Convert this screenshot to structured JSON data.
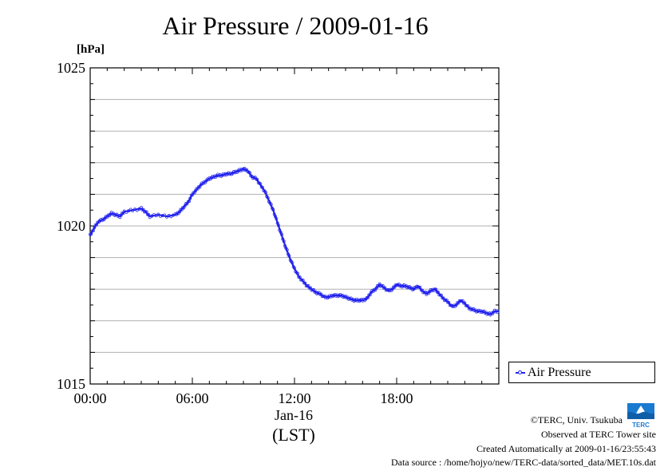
{
  "chart_data": {
    "type": "line",
    "title": "Air Pressure / 2009-01-16",
    "ylabel": "[hPa]",
    "xlabel": "Jan-16",
    "xlabel2": "(LST)",
    "ylim": [
      1015,
      1025
    ],
    "xlim": [
      0,
      24
    ],
    "y_ticks": [
      "1015",
      "1020",
      "1025"
    ],
    "x_ticks": [
      "00:00",
      "06:00",
      "12:00",
      "18:00"
    ],
    "grid": true,
    "legend_position": "bottom-right",
    "series": [
      {
        "name": "Air Pressure",
        "color": "#2222ee",
        "x": [
          0,
          0.25,
          0.5,
          0.75,
          1.0,
          1.25,
          1.5,
          1.75,
          2.0,
          2.5,
          3.0,
          3.25,
          3.5,
          4.0,
          4.5,
          5.0,
          5.25,
          5.5,
          5.75,
          6.0,
          6.25,
          6.5,
          6.75,
          7.0,
          7.25,
          7.5,
          7.75,
          8.0,
          8.25,
          8.5,
          8.75,
          9.0,
          9.25,
          9.5,
          9.75,
          10.0,
          10.25,
          10.5,
          10.75,
          11.0,
          11.25,
          11.5,
          11.75,
          12.0,
          12.25,
          12.5,
          12.75,
          13.0,
          13.25,
          13.5,
          13.75,
          14.0,
          14.25,
          14.5,
          14.75,
          15.0,
          15.25,
          15.5,
          15.75,
          16.0,
          16.25,
          16.5,
          16.75,
          17.0,
          17.25,
          17.5,
          17.75,
          18.0,
          18.25,
          18.5,
          18.75,
          19.0,
          19.25,
          19.5,
          19.75,
          20.0,
          20.25,
          20.5,
          20.75,
          21.0,
          21.25,
          21.5,
          21.75,
          22.0,
          22.25,
          22.5,
          22.75,
          23.0,
          23.25,
          23.5,
          23.75,
          24.0
        ],
        "values": [
          1019.7,
          1019.95,
          1020.15,
          1020.2,
          1020.3,
          1020.4,
          1020.35,
          1020.3,
          1020.45,
          1020.5,
          1020.55,
          1020.45,
          1020.3,
          1020.35,
          1020.3,
          1020.35,
          1020.45,
          1020.6,
          1020.75,
          1021.0,
          1021.15,
          1021.3,
          1021.4,
          1021.5,
          1021.55,
          1021.6,
          1021.6,
          1021.65,
          1021.65,
          1021.7,
          1021.75,
          1021.8,
          1021.75,
          1021.55,
          1021.5,
          1021.3,
          1021.1,
          1020.8,
          1020.5,
          1020.1,
          1019.7,
          1019.3,
          1018.95,
          1018.65,
          1018.4,
          1018.25,
          1018.1,
          1018.0,
          1017.9,
          1017.85,
          1017.75,
          1017.75,
          1017.8,
          1017.8,
          1017.8,
          1017.75,
          1017.7,
          1017.65,
          1017.65,
          1017.65,
          1017.7,
          1017.9,
          1018.0,
          1018.15,
          1018.05,
          1017.95,
          1018.0,
          1018.15,
          1018.1,
          1018.1,
          1018.05,
          1018.0,
          1018.1,
          1017.95,
          1017.85,
          1017.95,
          1018.0,
          1017.85,
          1017.7,
          1017.6,
          1017.45,
          1017.5,
          1017.65,
          1017.55,
          1017.4,
          1017.35,
          1017.3,
          1017.3,
          1017.25,
          1017.2,
          1017.3,
          1017.3
        ]
      }
    ]
  },
  "footer": {
    "copyright": "©TERC, Univ. Tsukuba",
    "observed": "Observed at TERC Tower site",
    "created": "Created Automatically at 2009-01-16/23:55:43",
    "source": "Data source : /home/hojyo/new/TERC-data/sorted_data/MET.10s.dat"
  },
  "logo": {
    "text": "TERC",
    "color": "#1a7ad0"
  }
}
